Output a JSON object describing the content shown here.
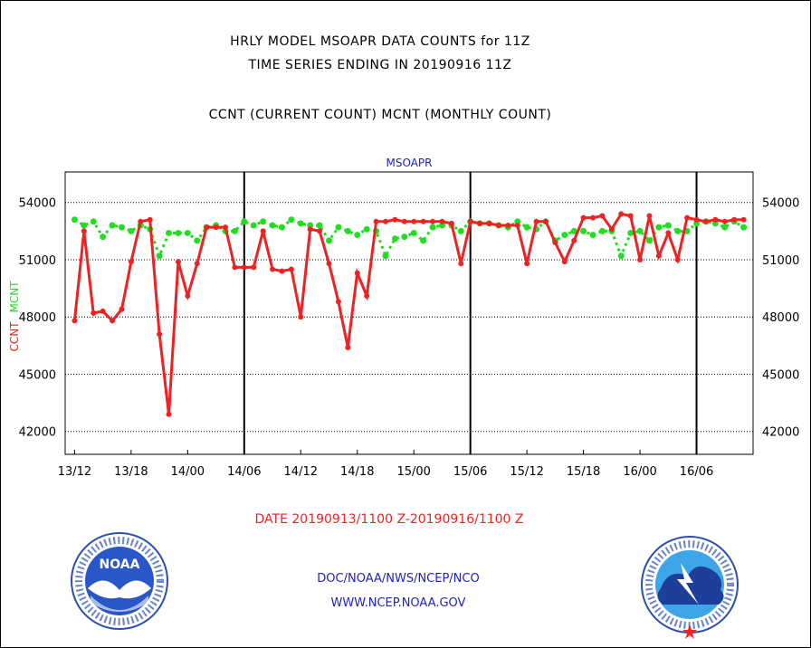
{
  "header": {
    "line1": "HRLY MODEL MSOAPR DATA COUNTS for 11Z",
    "line2": "TIME SERIES ENDING IN 20190916 11Z",
    "line3": "CCNT (CURRENT COUNT) MCNT (MONTHLY COUNT)"
  },
  "footer": {
    "date_range": "DATE 20190913/1100 Z-20190916/1100 Z",
    "org": "DOC/NOAA/NWS/NCEP/NCO",
    "url": "WWW.NCEP.NOAA.GOV",
    "noaa_logo_text": "NOAA",
    "nws_logo_text": "NATIONAL WEATHER SERVICE"
  },
  "colors": {
    "ccnt": "#ee2222",
    "mcnt": "#22dd22",
    "plot_title": "#2222bb"
  },
  "chart_data": {
    "type": "line",
    "title": "MSOAPR",
    "ylabel_ccnt": "CCNT",
    "ylabel_mcnt": "MCNT",
    "ylim": [
      40800,
      55600
    ],
    "xlim": [
      -1,
      72
    ],
    "y_ticks": [
      42000,
      45000,
      48000,
      51000,
      54000
    ],
    "y_tick_labels": [
      "42000",
      "45000",
      "48000",
      "51000",
      "54000"
    ],
    "x_ticks": [
      0,
      6,
      12,
      18,
      24,
      30,
      36,
      42,
      48,
      54,
      60,
      66
    ],
    "x_tick_labels": [
      "13/12",
      "13/18",
      "14/00",
      "14/06",
      "14/12",
      "14/18",
      "15/00",
      "15/06",
      "15/12",
      "15/18",
      "16/00",
      "16/06"
    ],
    "day_boundaries": [
      18,
      42,
      66
    ],
    "grid": true,
    "series": [
      {
        "name": "CCNT",
        "values": [
          47800,
          52500,
          48200,
          48300,
          47800,
          48400,
          50900,
          53000,
          53100,
          47100,
          42900,
          50900,
          49100,
          50800,
          52700,
          52700,
          52700,
          50600,
          50600,
          50600,
          52500,
          50500,
          50400,
          50500,
          48000,
          52600,
          52500,
          50800,
          48800,
          46400,
          50300,
          49100,
          53000,
          53000,
          53100,
          53000,
          53000,
          53000,
          53000,
          53000,
          52900,
          50800,
          53000,
          52900,
          52900,
          52800,
          52800,
          52800,
          50800,
          53000,
          53000,
          51900,
          50900,
          52000,
          53200,
          53200,
          53300,
          52600,
          53400,
          53300,
          51000,
          53300,
          51200,
          52400,
          51000,
          53200,
          53100,
          53000,
          53100,
          53000,
          53100,
          53100
        ]
      },
      {
        "name": "MCNT",
        "values": [
          53100,
          52800,
          53000,
          52200,
          52800,
          52700,
          52500,
          52800,
          52600,
          51200,
          52400,
          52400,
          52400,
          52000,
          52700,
          52800,
          52500,
          52500,
          53000,
          52800,
          53000,
          52800,
          52700,
          53100,
          52900,
          52800,
          52800,
          52000,
          52700,
          52500,
          52300,
          52600,
          52500,
          51200,
          52100,
          52200,
          52400,
          52000,
          52700,
          52800,
          52800,
          52500,
          53000,
          52900,
          52900,
          52800,
          52700,
          53000,
          52700,
          52600,
          53000,
          52000,
          52300,
          52500,
          52500,
          52300,
          52500,
          52500,
          51200,
          52400,
          52500,
          52000,
          52700,
          52800,
          52500,
          52500,
          52900,
          53000,
          52900,
          52700,
          53000,
          52700
        ]
      }
    ]
  }
}
